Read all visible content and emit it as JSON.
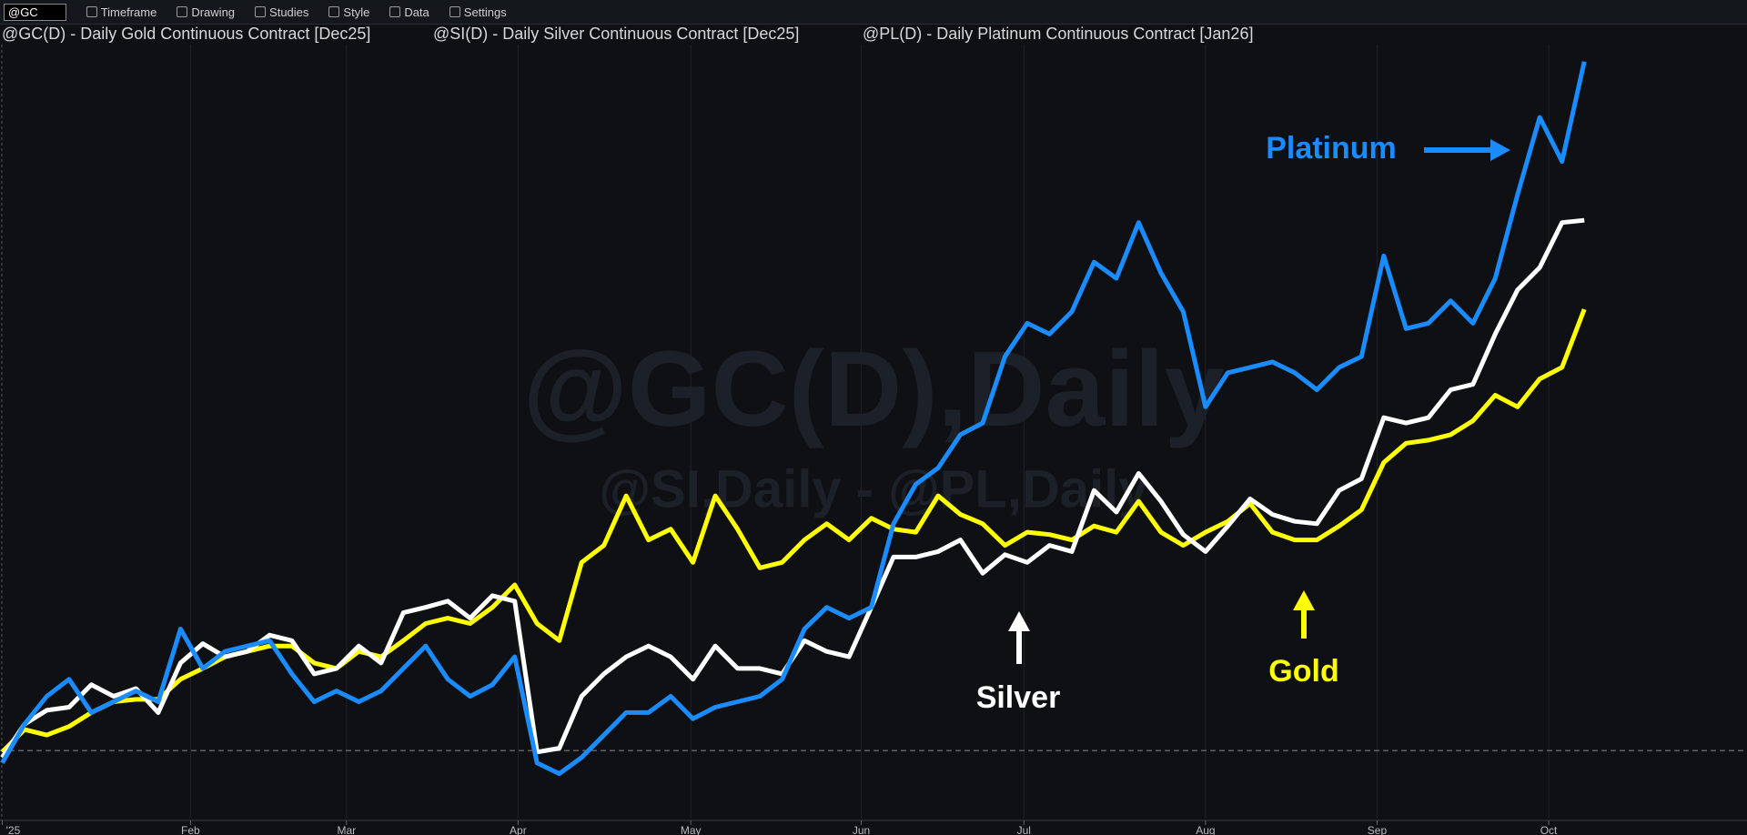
{
  "toolbar": {
    "symbol": "@GC",
    "items": [
      "Timeframe",
      "Drawing",
      "Studies",
      "Style",
      "Data",
      "Settings"
    ]
  },
  "chart_data": {
    "type": "line",
    "legend": [
      "@GC(D) - Daily  Gold Continuous Contract [Dec25]",
      "@SI(D) - Daily  Silver Continuous Contract [Dec25]",
      "@PL(D) - Daily  Platinum Continuous Contract [Jan26]"
    ],
    "watermarks": [
      "@GC(D),Daily",
      "@SI,Daily - @PL,Daily"
    ],
    "ylim": [
      0,
      100
    ],
    "baseline": 8.8,
    "grid": true,
    "xticks": [
      {
        "value": 0,
        "label": "'25"
      },
      {
        "value": 8.45,
        "label": "Feb"
      },
      {
        "value": 15.45,
        "label": "Mar"
      },
      {
        "value": 23.15,
        "label": "Apr"
      },
      {
        "value": 30.9,
        "label": "May"
      },
      {
        "value": 38.55,
        "label": "Jun"
      },
      {
        "value": 45.85,
        "label": "Jul"
      },
      {
        "value": 54,
        "label": "Aug"
      },
      {
        "value": 61.7,
        "label": "Sep"
      },
      {
        "value": 69.4,
        "label": "Oct"
      }
    ],
    "series": [
      {
        "name": "Gold",
        "color": "#ffff00",
        "values": [
          8.6,
          11.5,
          10.8,
          11.9,
          13.7,
          15.1,
          15.4,
          15.4,
          18,
          19.4,
          20.9,
          21.6,
          22.3,
          22.3,
          20.1,
          19.4,
          21.6,
          20.9,
          23,
          25.2,
          25.9,
          25.2,
          27.3,
          30.2,
          25.2,
          23,
          33.1,
          35.3,
          41.7,
          36,
          37.4,
          33.1,
          41.7,
          37.4,
          32.4,
          33.1,
          36,
          38.1,
          36,
          38.8,
          37.4,
          37,
          41.7,
          39.3,
          38.1,
          35.3,
          37,
          36.7,
          36,
          37.8,
          37,
          41,
          37,
          35.3,
          37,
          38.4,
          40.7,
          37,
          36,
          36,
          37.8,
          39.9,
          46,
          48.5,
          48.9,
          49.6,
          51.4,
          54.7,
          53.2,
          56.8,
          58.3,
          65.8
        ]
      },
      {
        "name": "Silver",
        "color": "#ffffff",
        "values": [
          7.9,
          12.2,
          14,
          14.4,
          17.3,
          15.8,
          16.8,
          13.7,
          20.1,
          22.6,
          20.9,
          21.6,
          23.7,
          23,
          18.7,
          19.4,
          22.3,
          20.1,
          26.6,
          27.3,
          28.1,
          25.9,
          28.8,
          28.1,
          8.6,
          9.1,
          15.8,
          18.7,
          20.9,
          22.3,
          20.9,
          18,
          22.3,
          19.4,
          19.4,
          18.7,
          23,
          21.6,
          20.9,
          27.3,
          33.8,
          33.8,
          34.5,
          36,
          31.7,
          34.1,
          33.1,
          35.3,
          34.5,
          42.4,
          39.6,
          44.6,
          41,
          36.7,
          34.5,
          37.8,
          41.3,
          39.3,
          38.4,
          38.1,
          42.4,
          43.9,
          51.8,
          51.1,
          51.8,
          55.4,
          56.1,
          62.6,
          68.3,
          71.2,
          77,
          77.3
        ]
      },
      {
        "name": "Platinum",
        "color": "#1a8cff",
        "values": [
          7.2,
          12.2,
          15.8,
          18,
          13.7,
          15.1,
          16.5,
          15.1,
          24.5,
          19.4,
          21.6,
          22.3,
          23,
          18.7,
          15.1,
          16.5,
          15.1,
          16.5,
          19.4,
          22.3,
          18,
          15.8,
          17.3,
          20.9,
          7.2,
          5.8,
          7.9,
          10.8,
          13.7,
          13.7,
          15.8,
          12.9,
          14.4,
          15.1,
          15.8,
          18,
          24.5,
          27.3,
          25.9,
          27.3,
          38.1,
          43.2,
          45.3,
          49.6,
          51.1,
          59.7,
          64,
          62.6,
          65.5,
          71.9,
          69.8,
          77,
          70.5,
          65.5,
          53.2,
          57.6,
          58.3,
          59,
          57.6,
          55.4,
          58.3,
          59.7,
          72.7,
          63.3,
          64,
          66.9,
          64,
          69.8,
          80.6,
          90.6,
          84.9,
          97.8
        ]
      }
    ]
  }
}
